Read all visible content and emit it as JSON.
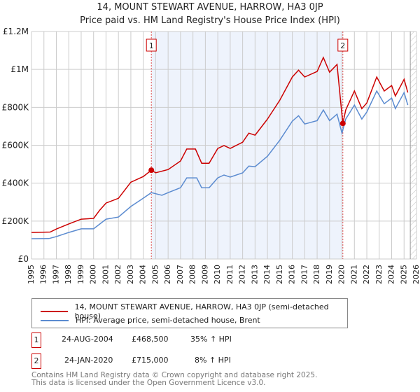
{
  "title": "14, MOUNT STEWART AVENUE, HARROW, HA3 0JP",
  "subtitle": "Price paid vs. HM Land Registry's House Price Index (HPI)",
  "colors": {
    "property": "#cc0000",
    "hpi": "#5b8bd0",
    "shade": "#eef3fc"
  },
  "chart_data": {
    "type": "line",
    "title": "Price paid vs. HM Land Registry's House Price Index (HPI)",
    "xlim": [
      1995,
      2026
    ],
    "ylim": [
      0,
      1200000
    ],
    "x_ticks": [
      "1995",
      "1996",
      "1997",
      "1998",
      "1999",
      "2000",
      "2001",
      "2002",
      "2003",
      "2004",
      "2005",
      "2006",
      "2007",
      "2008",
      "2009",
      "2010",
      "2011",
      "2012",
      "2013",
      "2014",
      "2015",
      "2016",
      "2017",
      "2018",
      "2019",
      "2020",
      "2021",
      "2022",
      "2023",
      "2024",
      "2025",
      "2026"
    ],
    "y_ticks": [
      {
        "v": 0,
        "label": "£0"
      },
      {
        "v": 200000,
        "label": "£200K"
      },
      {
        "v": 400000,
        "label": "£400K"
      },
      {
        "v": 600000,
        "label": "£600K"
      },
      {
        "v": 800000,
        "label": "£800K"
      },
      {
        "v": 1000000,
        "label": "£1M"
      },
      {
        "v": 1200000,
        "label": "£1.2M"
      }
    ],
    "grid": true,
    "forecast_hatch_from": 2025.5,
    "series": [
      {
        "name": "14, MOUNT STEWART AVENUE, HARROW, HA3 0JP (semi-detached house)",
        "x": [
          1995,
          1996.5,
          1997,
          1998,
          1999,
          2000,
          2000.5,
          2001,
          2002,
          2003,
          2004,
          2004.65,
          2005,
          2006,
          2007,
          2007.5,
          2008.2,
          2008.7,
          2009.3,
          2010,
          2010.5,
          2011,
          2012,
          2012.5,
          2013,
          2014,
          2015,
          2016,
          2016.5,
          2017,
          2018,
          2018.5,
          2019,
          2019.6,
          2019.95,
          2020.07,
          2020.3,
          2021,
          2021.6,
          2022,
          2022.8,
          2023.4,
          2024,
          2024.3,
          2025,
          2025.3
        ],
        "y": [
          140000,
          142000,
          158000,
          185000,
          210000,
          214000,
          258000,
          295000,
          320000,
          405000,
          435000,
          468500,
          455000,
          472000,
          517000,
          580000,
          580000,
          505000,
          505000,
          583000,
          598000,
          583000,
          616000,
          664000,
          653000,
          738000,
          838000,
          960000,
          996000,
          960000,
          989000,
          1063000,
          985000,
          1026000,
          790000,
          715000,
          786000,
          886000,
          793000,
          823000,
          960000,
          886000,
          915000,
          860000,
          948000,
          878000
        ]
      },
      {
        "name": "HPI: Average price, semi-detached house, Brent",
        "x": [
          1995,
          1996.4,
          1997,
          1998,
          1999,
          2000,
          2001,
          2002,
          2003,
          2004,
          2004.65,
          2005.5,
          2006,
          2007,
          2007.5,
          2008.3,
          2008.7,
          2009.3,
          2010,
          2010.5,
          2011,
          2012,
          2012.5,
          2013,
          2014,
          2015,
          2016,
          2016.5,
          2017,
          2018,
          2018.5,
          2019,
          2019.6,
          2020,
          2020.3,
          2021,
          2021.6,
          2022,
          2022.8,
          2023.4,
          2024,
          2024.3,
          2025,
          2025.3
        ],
        "y": [
          107000,
          108000,
          118000,
          140000,
          159000,
          159000,
          210000,
          221000,
          277000,
          321000,
          350000,
          336000,
          350000,
          376000,
          428000,
          428000,
          376000,
          376000,
          428000,
          443000,
          432000,
          454000,
          490000,
          487000,
          542000,
          627000,
          727000,
          756000,
          712000,
          730000,
          786000,
          730000,
          764000,
          664000,
          738000,
          812000,
          738000,
          775000,
          886000,
          819000,
          849000,
          793000,
          878000,
          812000
        ]
      }
    ],
    "annotations": [
      {
        "label": "1",
        "x": 2004.65,
        "y": 468500
      },
      {
        "label": "2",
        "x": 2020.07,
        "y": 715000
      }
    ]
  },
  "legend": {
    "property": "14, MOUNT STEWART AVENUE, HARROW, HA3 0JP (semi-detached house)",
    "hpi": "HPI: Average price, semi-detached house, Brent"
  },
  "sales": [
    {
      "num": "1",
      "date": "24-AUG-2004",
      "price": "£468,500",
      "hpi": "35% ↑ HPI"
    },
    {
      "num": "2",
      "date": "24-JAN-2020",
      "price": "£715,000",
      "hpi": "8% ↑ HPI"
    }
  ],
  "footer": {
    "line1": "Contains HM Land Registry data © Crown copyright and database right 2025.",
    "line2": "This data is licensed under the Open Government Licence v3.0."
  }
}
